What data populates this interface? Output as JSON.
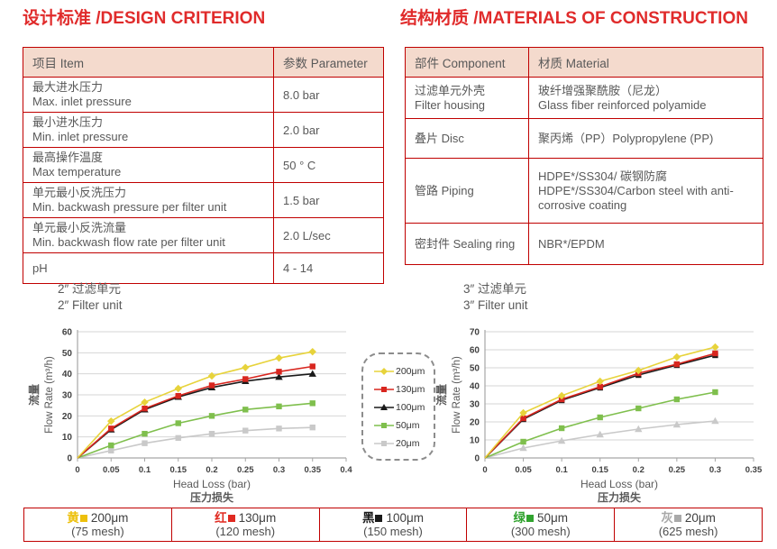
{
  "design": {
    "title": "设计标准 /DESIGN CRITERION",
    "col_item": "项目 Item",
    "col_param": "参数 Parameter",
    "rows": [
      {
        "zh": "最大进水压力",
        "en": "Max. inlet pressure",
        "value": "8.0 bar"
      },
      {
        "zh": "最小进水压力",
        "en": "Min. inlet pressure",
        "value": "2.0 bar"
      },
      {
        "zh": "最高操作温度",
        "en": "Max temperature",
        "value": "50 ° C"
      },
      {
        "zh": "单元最小反洗压力",
        "en": "Min. backwash pressure per filter unit",
        "value": "1.5 bar"
      },
      {
        "zh": "单元最小反洗流量",
        "en": "Min. backwash flow rate per filter unit",
        "value": "2.0 L/sec"
      },
      {
        "zh": "pH",
        "en": "",
        "value": "4 - 14"
      }
    ]
  },
  "materials": {
    "title": "结构材质 /MATERIALS OF CONSTRUCTION",
    "col_component": "部件 Component",
    "col_material": "材质 Material",
    "rows": [
      {
        "component_zh": "过滤单元外壳",
        "component_en": "Filter housing",
        "material_zh": "玻纤增强聚酰胺（尼龙）",
        "material_en": "Glass fiber reinforced polyamide"
      },
      {
        "component_zh": "叠片 Disc",
        "component_en": "",
        "material_zh": "聚丙烯（PP）Polypropylene (PP)",
        "material_en": ""
      },
      {
        "component_zh": "管路 Piping",
        "component_en": "",
        "material_zh": "HDPE*/SS304/ 碳钢防腐",
        "material_en": "HDPE*/SS304/Carbon steel with anti-corrosive coating"
      },
      {
        "component_zh": "密封件 Sealing ring",
        "component_en": "",
        "material_zh": "NBR*/EPDM",
        "material_en": ""
      }
    ]
  },
  "chart_data": [
    {
      "type": "line",
      "title_zh": "2″ 过滤单元",
      "title_en": "2″ Filter unit",
      "xlabel_en": "Head Loss (bar)",
      "xlabel_zh": "压力损失",
      "ylabel_zh": "流量",
      "ylabel_en": "Flow Rate (m³/h)",
      "xlim": [
        0,
        0.4
      ],
      "ylim": [
        0,
        60
      ],
      "xticks": [
        0,
        0.05,
        0.1,
        0.15,
        0.2,
        0.25,
        0.3,
        0.35,
        0.4
      ],
      "yticks": [
        0,
        10,
        20,
        30,
        40,
        50,
        60
      ],
      "grid": true,
      "x": [
        0,
        0.05,
        0.1,
        0.15,
        0.2,
        0.25,
        0.3,
        0.35
      ],
      "series": [
        {
          "name": "200μm",
          "color": "#e7d33b",
          "marker": "diamond",
          "values": [
            0,
            17.5,
            26.5,
            33,
            39,
            43,
            47.5,
            50.5
          ]
        },
        {
          "name": "130μm",
          "color": "#d8261f",
          "marker": "square",
          "values": [
            0,
            14,
            23.5,
            29.5,
            34.5,
            37.5,
            41,
            43.5
          ]
        },
        {
          "name": "100μm",
          "color": "#1a1a1a",
          "marker": "triangle",
          "values": [
            0,
            13.5,
            23,
            29,
            33.5,
            36.5,
            38.5,
            40
          ]
        },
        {
          "name": "50μm",
          "color": "#7fbf4d",
          "marker": "square",
          "values": [
            0,
            6,
            11.5,
            16.5,
            20,
            23,
            24.5,
            26
          ]
        },
        {
          "name": "20μm",
          "color": "#c9c9c9",
          "marker": "square",
          "values": [
            0,
            3.5,
            7,
            9.5,
            11.5,
            13,
            14,
            14.5
          ]
        }
      ]
    },
    {
      "type": "line",
      "title_zh": "3″ 过滤单元",
      "title_en": "3″ Filter unit",
      "xlabel_en": "Head Loss (bar)",
      "xlabel_zh": "压力损失",
      "ylabel_zh": "流量",
      "ylabel_en": "Flow Rate (m³/h)",
      "xlim": [
        0,
        0.35
      ],
      "ylim": [
        0,
        70
      ],
      "xticks": [
        0,
        0.05,
        0.1,
        0.15,
        0.2,
        0.25,
        0.3,
        0.35
      ],
      "yticks": [
        0,
        10,
        20,
        30,
        40,
        50,
        60,
        70
      ],
      "grid": true,
      "x": [
        0,
        0.05,
        0.1,
        0.15,
        0.2,
        0.25,
        0.3
      ],
      "series": [
        {
          "name": "200μm",
          "color": "#e7d33b",
          "marker": "diamond",
          "values": [
            0,
            25,
            34.5,
            42.5,
            48.5,
            56,
            61.5
          ]
        },
        {
          "name": "130μm",
          "color": "#d8261f",
          "marker": "square",
          "values": [
            0,
            22,
            32.5,
            39.5,
            47,
            52,
            58
          ]
        },
        {
          "name": "100μm",
          "color": "#1a1a1a",
          "marker": "square",
          "values": [
            0,
            21.5,
            32,
            39,
            46,
            51.5,
            57
          ]
        },
        {
          "name": "50μm",
          "color": "#7fbf4d",
          "marker": "square",
          "values": [
            0,
            9,
            16.5,
            22.5,
            27.5,
            32.5,
            36.5
          ]
        },
        {
          "name": "20μm",
          "color": "#c9c9c9",
          "marker": "triangle",
          "values": [
            0,
            5.5,
            9.5,
            13,
            16,
            18.5,
            20.5
          ]
        }
      ]
    }
  ],
  "legend_box": {
    "entries": [
      {
        "label": "200μm",
        "color": "#e7d33b",
        "marker": "diamond"
      },
      {
        "label": "130μm",
        "color": "#d8261f",
        "marker": "square"
      },
      {
        "label": "100μm",
        "color": "#1a1a1a",
        "marker": "triangle"
      },
      {
        "label": "50μm",
        "color": "#7fbf4d",
        "marker": "square"
      },
      {
        "label": "20μm",
        "color": "#c9c9c9",
        "marker": "square"
      }
    ]
  },
  "bottom_legend": [
    {
      "cn": "黄",
      "label": "200μm",
      "mesh": "(75 mesh)",
      "color": "#edc00c"
    },
    {
      "cn": "红",
      "label": "130μm",
      "mesh": "(120 mesh)",
      "color": "#e02a21"
    },
    {
      "cn": "黑",
      "label": "100μm",
      "mesh": "(150 mesh)",
      "color": "#1a1a1a"
    },
    {
      "cn": "绿",
      "label": "50μm",
      "mesh": "(300 mesh)",
      "color": "#31a32f"
    },
    {
      "cn": "灰",
      "label": "20μm",
      "mesh": "(625 mesh)",
      "color": "#a9a9a9"
    }
  ],
  "colors": {
    "heading_red": "#e02b2b",
    "table_border_red": "#c00000",
    "header_row_bg": "#f4dacd",
    "body_text": "#595959",
    "grid_line": "#d6d6d6",
    "axis_line": "#a6a6a6"
  }
}
